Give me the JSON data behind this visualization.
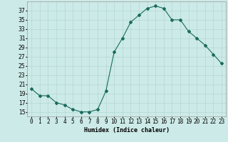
{
  "x": [
    0,
    1,
    2,
    3,
    4,
    5,
    6,
    7,
    8,
    9,
    10,
    11,
    12,
    13,
    14,
    15,
    16,
    17,
    18,
    19,
    20,
    21,
    22,
    23
  ],
  "y": [
    20,
    18.5,
    18.5,
    17,
    16.5,
    15.5,
    15,
    15,
    15.5,
    19.5,
    28,
    31,
    34.5,
    36,
    37.5,
    38,
    37.5,
    35,
    35,
    32.5,
    31,
    29.5,
    27.5,
    25.5
  ],
  "xlabel": "Humidex (Indice chaleur)",
  "ylabel": "",
  "xlim": [
    -0.5,
    23.5
  ],
  "ylim": [
    14,
    39
  ],
  "yticks": [
    15,
    17,
    19,
    21,
    23,
    25,
    27,
    29,
    31,
    33,
    35,
    37
  ],
  "xtick_labels": [
    "0",
    "1",
    "2",
    "3",
    "4",
    "5",
    "6",
    "7",
    "8",
    "9",
    "10",
    "11",
    "12",
    "13",
    "14",
    "15",
    "16",
    "17",
    "18",
    "19",
    "20",
    "21",
    "22",
    "23"
  ],
  "bg_color": "#cceae7",
  "line_color": "#1a6b5e",
  "marker": "D",
  "marker_size": 2,
  "grid_color": "#aed4d0",
  "axis_fontsize": 6,
  "tick_fontsize": 5.5
}
